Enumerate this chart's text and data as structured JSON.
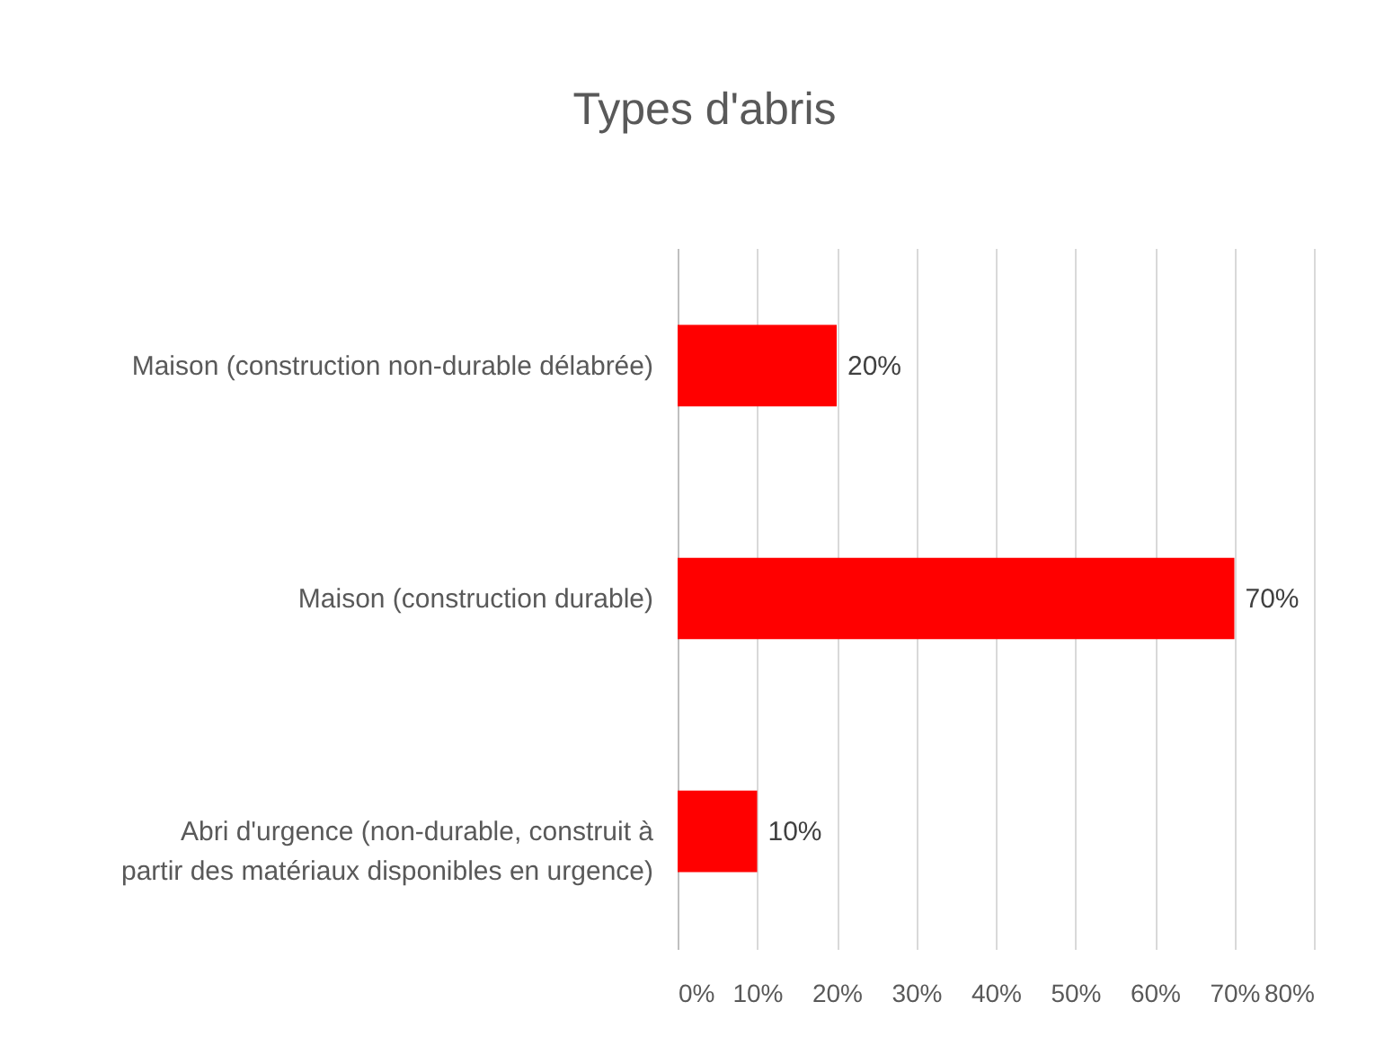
{
  "chart_data": {
    "type": "bar",
    "orientation": "horizontal",
    "title": "Types d'abris",
    "categories": [
      "Maison (construction non-durable délabrée)",
      "Maison (construction durable)",
      "Abri d'urgence (non-durable, construit à partir des matériaux disponibles en urgence)"
    ],
    "values": [
      20,
      70,
      10
    ],
    "value_labels": [
      "20%",
      "70%",
      "10%"
    ],
    "color": "#ff0000",
    "xlim": [
      0,
      80
    ],
    "xticks": [
      {
        "value": 0,
        "label": "0%"
      },
      {
        "value": 10,
        "label": "10%"
      },
      {
        "value": 20,
        "label": "20%"
      },
      {
        "value": 30,
        "label": "30%"
      },
      {
        "value": 40,
        "label": "40%"
      },
      {
        "value": 50,
        "label": "50%"
      },
      {
        "value": 60,
        "label": "60%"
      },
      {
        "value": 70,
        "label": "70%"
      },
      {
        "value": 80,
        "label": "80%"
      }
    ],
    "grid": "x"
  }
}
